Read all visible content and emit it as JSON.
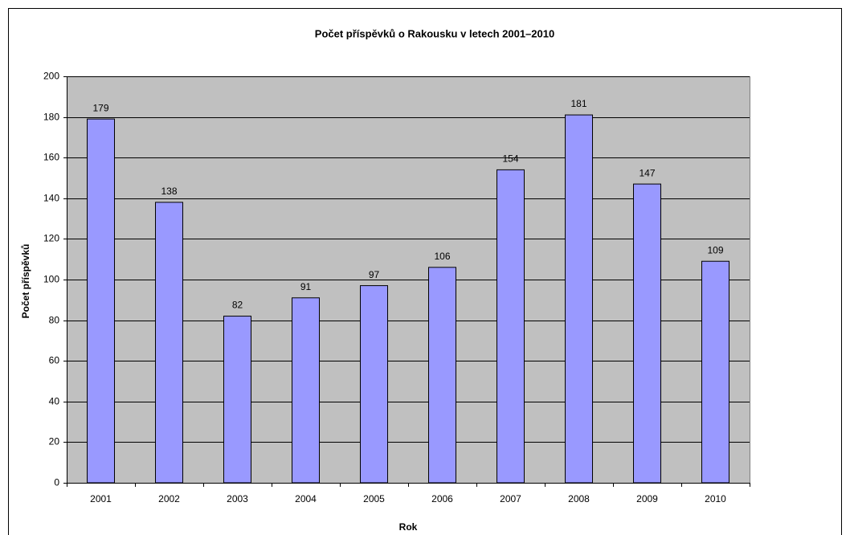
{
  "chart_data": {
    "type": "bar",
    "title": "Počet příspěvků o Rakousku v letech 2001–2010",
    "x_label": "Rok",
    "y_label": "Počet příspěvků",
    "categories": [
      "2001",
      "2002",
      "2003",
      "2004",
      "2005",
      "2006",
      "2007",
      "2008",
      "2009",
      "2010"
    ],
    "values": [
      179,
      138,
      82,
      91,
      97,
      106,
      154,
      181,
      147,
      109
    ],
    "color": "#9999ff",
    "plot_background": "#c0c0c0",
    "ylim": [
      0,
      200
    ],
    "yticks": [
      0,
      20,
      40,
      60,
      80,
      100,
      120,
      140,
      160,
      180,
      200
    ],
    "grid": true,
    "data_labels": true
  }
}
